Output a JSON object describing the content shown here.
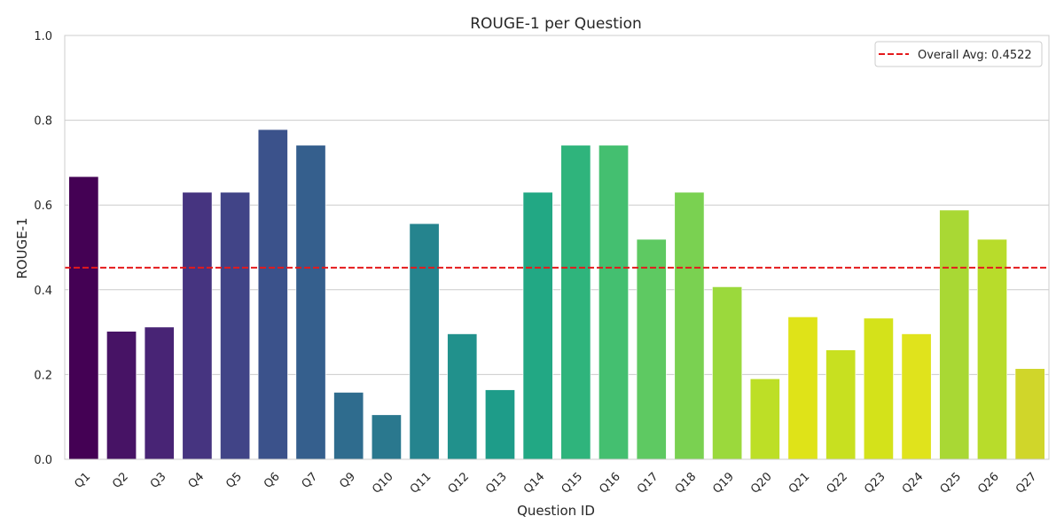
{
  "chart_data": {
    "type": "bar",
    "title": "ROUGE-1 per Question",
    "xlabel": "Question ID",
    "ylabel": "ROUGE-1",
    "ylim": [
      0,
      1.0
    ],
    "yticks": [
      "0.0",
      "0.2",
      "0.4",
      "0.6",
      "0.8",
      "1.0"
    ],
    "grid": "horizontal",
    "legend_placement": "top-right",
    "categories": [
      "Q1",
      "Q2",
      "Q3",
      "Q4",
      "Q5",
      "Q6",
      "Q7",
      "Q9",
      "Q10",
      "Q11",
      "Q12",
      "Q13",
      "Q14",
      "Q15",
      "Q16",
      "Q17",
      "Q18",
      "Q19",
      "Q20",
      "Q21",
      "Q22",
      "Q23",
      "Q24",
      "Q25",
      "Q26",
      "Q27"
    ],
    "values": [
      0.667,
      0.302,
      0.312,
      0.63,
      0.63,
      0.778,
      0.741,
      0.158,
      0.105,
      0.556,
      0.296,
      0.164,
      0.63,
      0.741,
      0.741,
      0.519,
      0.63,
      0.407,
      0.19,
      0.336,
      0.258,
      0.333,
      0.296,
      0.588,
      0.519,
      0.214
    ],
    "colors": [
      "#440154",
      "#471365",
      "#482475",
      "#463480",
      "#414487",
      "#3b528b",
      "#355f8d",
      "#2f6c8e",
      "#2a788e",
      "#25848e",
      "#21918c",
      "#1e9c89",
      "#22a884",
      "#2fb47c",
      "#44bf70",
      "#5ec962",
      "#7ad151",
      "#9bd93c",
      "#bddf26",
      "#dfe318",
      "#c8e020",
      "#d4e21a",
      "#e0e31c",
      "#a9d834",
      "#b8dc2b",
      "#d0d62a"
    ],
    "reference_line": {
      "label": "Overall Avg: 0.4522",
      "value": 0.4522,
      "color": "#e41a1c",
      "style": "dashed"
    }
  }
}
